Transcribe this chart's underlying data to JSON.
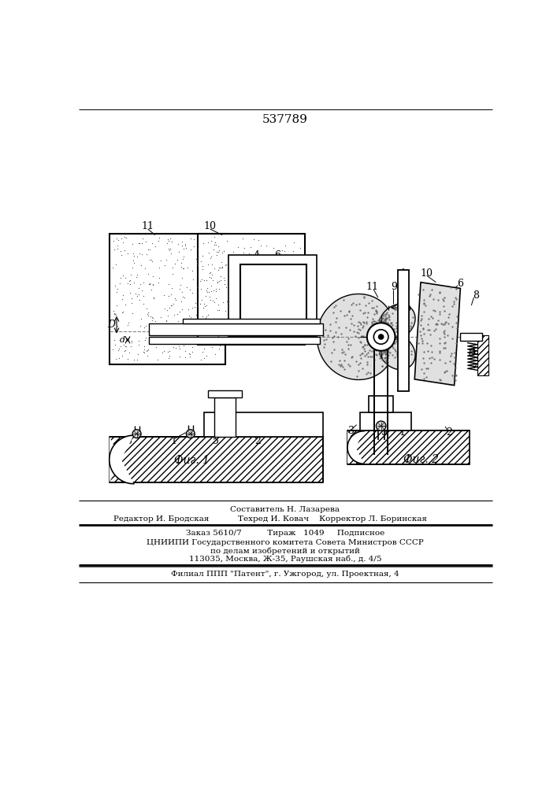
{
  "patent_number": "537789",
  "fig1_label": "Фиг. 1",
  "fig2_label": "Фиг. 2",
  "background_color": "#ffffff",
  "editor_line": "Редактор И. Бродская",
  "composer_line": "Составитель Н. Лазарева",
  "techred_line": "Техред И. Ковач    Корректор Л. Боринская",
  "order_line": "Заказ 5610/7          Тираж   1049     Подписное",
  "org_line1": "ЦНИИПИ Государственного комитета Совета Министров СССР",
  "org_line2": "по делам изобретений и открытий",
  "org_line3": "113035, Москва, Ж-35, Раушская наб., д. 4/5",
  "branch_line": "Филиал ППП \"Патент\", г. Ужгород, ул. Проектная, 4"
}
